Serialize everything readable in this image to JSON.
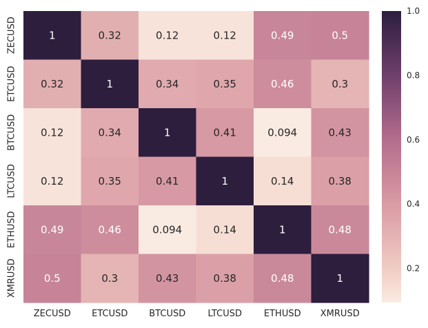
{
  "chart_data": {
    "type": "heatmap",
    "title": "",
    "xlabel": "",
    "ylabel": "",
    "x_categories": [
      "ZECUSD",
      "ETCUSD",
      "BTCUSD",
      "LTCUSD",
      "ETHUSD",
      "XMRUSD"
    ],
    "y_categories": [
      "ZECUSD",
      "ETCUSD",
      "BTCUSD",
      "LTCUSD",
      "ETHUSD",
      "XMRUSD"
    ],
    "values": [
      [
        1,
        0.32,
        0.12,
        0.12,
        0.49,
        0.5
      ],
      [
        0.32,
        1,
        0.34,
        0.35,
        0.46,
        0.3
      ],
      [
        0.12,
        0.34,
        1,
        0.41,
        0.094,
        0.43
      ],
      [
        0.12,
        0.35,
        0.41,
        1,
        0.14,
        0.38
      ],
      [
        0.49,
        0.46,
        0.094,
        0.14,
        1,
        0.48
      ],
      [
        0.5,
        0.3,
        0.43,
        0.38,
        0.48,
        1
      ]
    ],
    "annotations": [
      [
        "1",
        "0.32",
        "0.12",
        "0.12",
        "0.49",
        "0.5"
      ],
      [
        "0.32",
        "1",
        "0.34",
        "0.35",
        "0.46",
        "0.3"
      ],
      [
        "0.12",
        "0.34",
        "1",
        "0.41",
        "0.094",
        "0.43"
      ],
      [
        "0.12",
        "0.35",
        "0.41",
        "1",
        "0.14",
        "0.38"
      ],
      [
        "0.49",
        "0.46",
        "0.094",
        "0.14",
        "1",
        "0.48"
      ],
      [
        "0.5",
        "0.3",
        "0.43",
        "0.38",
        "0.48",
        "1"
      ]
    ],
    "colorbar": {
      "range": [
        0.094,
        1.0
      ],
      "ticks": [
        0.2,
        0.4,
        0.6,
        0.8,
        1.0
      ],
      "tick_labels": [
        "0.2",
        "0.4",
        "0.6",
        "0.8",
        "1.0"
      ]
    },
    "colormap": {
      "stops": [
        {
          "value": 0.094,
          "color": "#faebe2"
        },
        {
          "value": 0.2,
          "color": "#f0ccc4"
        },
        {
          "value": 0.4,
          "color": "#d99ba4"
        },
        {
          "value": 0.6,
          "color": "#b46d8d"
        },
        {
          "value": 0.8,
          "color": "#6f3f6c"
        },
        {
          "value": 1.0,
          "color": "#2d1e3e"
        }
      ],
      "light_text_color": "#ffffff",
      "dark_text_color": "#262626"
    }
  }
}
